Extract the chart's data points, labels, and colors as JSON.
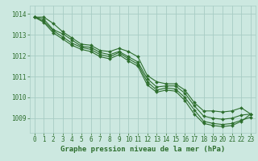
{
  "background_color": "#cce8e0",
  "grid_color": "#a8ccc4",
  "line_color": "#2d6e2d",
  "xlabel": "Graphe pression niveau de la mer (hPa)",
  "xlabel_fontsize": 6.5,
  "tick_fontsize": 5.5,
  "xlim": [
    -0.5,
    23.5
  ],
  "ylim": [
    1008.3,
    1014.4
  ],
  "yticks": [
    1009,
    1010,
    1011,
    1012,
    1013,
    1014
  ],
  "xticks": [
    0,
    1,
    2,
    3,
    4,
    5,
    6,
    7,
    8,
    9,
    10,
    11,
    12,
    13,
    14,
    15,
    16,
    17,
    18,
    19,
    20,
    21,
    22,
    23
  ],
  "series": [
    [
      1013.85,
      1013.85,
      1013.55,
      1013.15,
      1012.85,
      1012.55,
      1012.5,
      1012.25,
      1012.2,
      1012.35,
      1012.2,
      1011.95,
      1011.05,
      1010.75,
      1010.65,
      1010.65,
      1010.35,
      1009.75,
      1009.35,
      1009.35,
      1009.3,
      1009.35,
      1009.5,
      1009.2
    ],
    [
      1013.85,
      1013.75,
      1013.25,
      1013.05,
      1012.75,
      1012.45,
      1012.4,
      1012.15,
      1012.05,
      1012.2,
      1011.95,
      1011.7,
      1010.9,
      1010.5,
      1010.55,
      1010.55,
      1010.2,
      1009.6,
      1009.1,
      1009.0,
      1008.95,
      1009.0,
      1009.15,
      1009.2
    ],
    [
      1013.85,
      1013.65,
      1013.2,
      1012.9,
      1012.6,
      1012.4,
      1012.3,
      1012.05,
      1011.95,
      1012.15,
      1011.85,
      1011.6,
      1010.75,
      1010.35,
      1010.45,
      1010.4,
      1010.0,
      1009.4,
      1008.85,
      1008.75,
      1008.7,
      1008.75,
      1008.9,
      1009.05
    ],
    [
      1013.85,
      1013.6,
      1013.1,
      1012.8,
      1012.5,
      1012.3,
      1012.2,
      1011.95,
      1011.85,
      1012.05,
      1011.75,
      1011.5,
      1010.6,
      1010.25,
      1010.35,
      1010.3,
      1009.85,
      1009.2,
      1008.75,
      1008.65,
      1008.6,
      1008.65,
      1008.85,
      1009.2
    ]
  ],
  "marker_style": "D",
  "marker_size": 2.0,
  "line_width": 0.8
}
